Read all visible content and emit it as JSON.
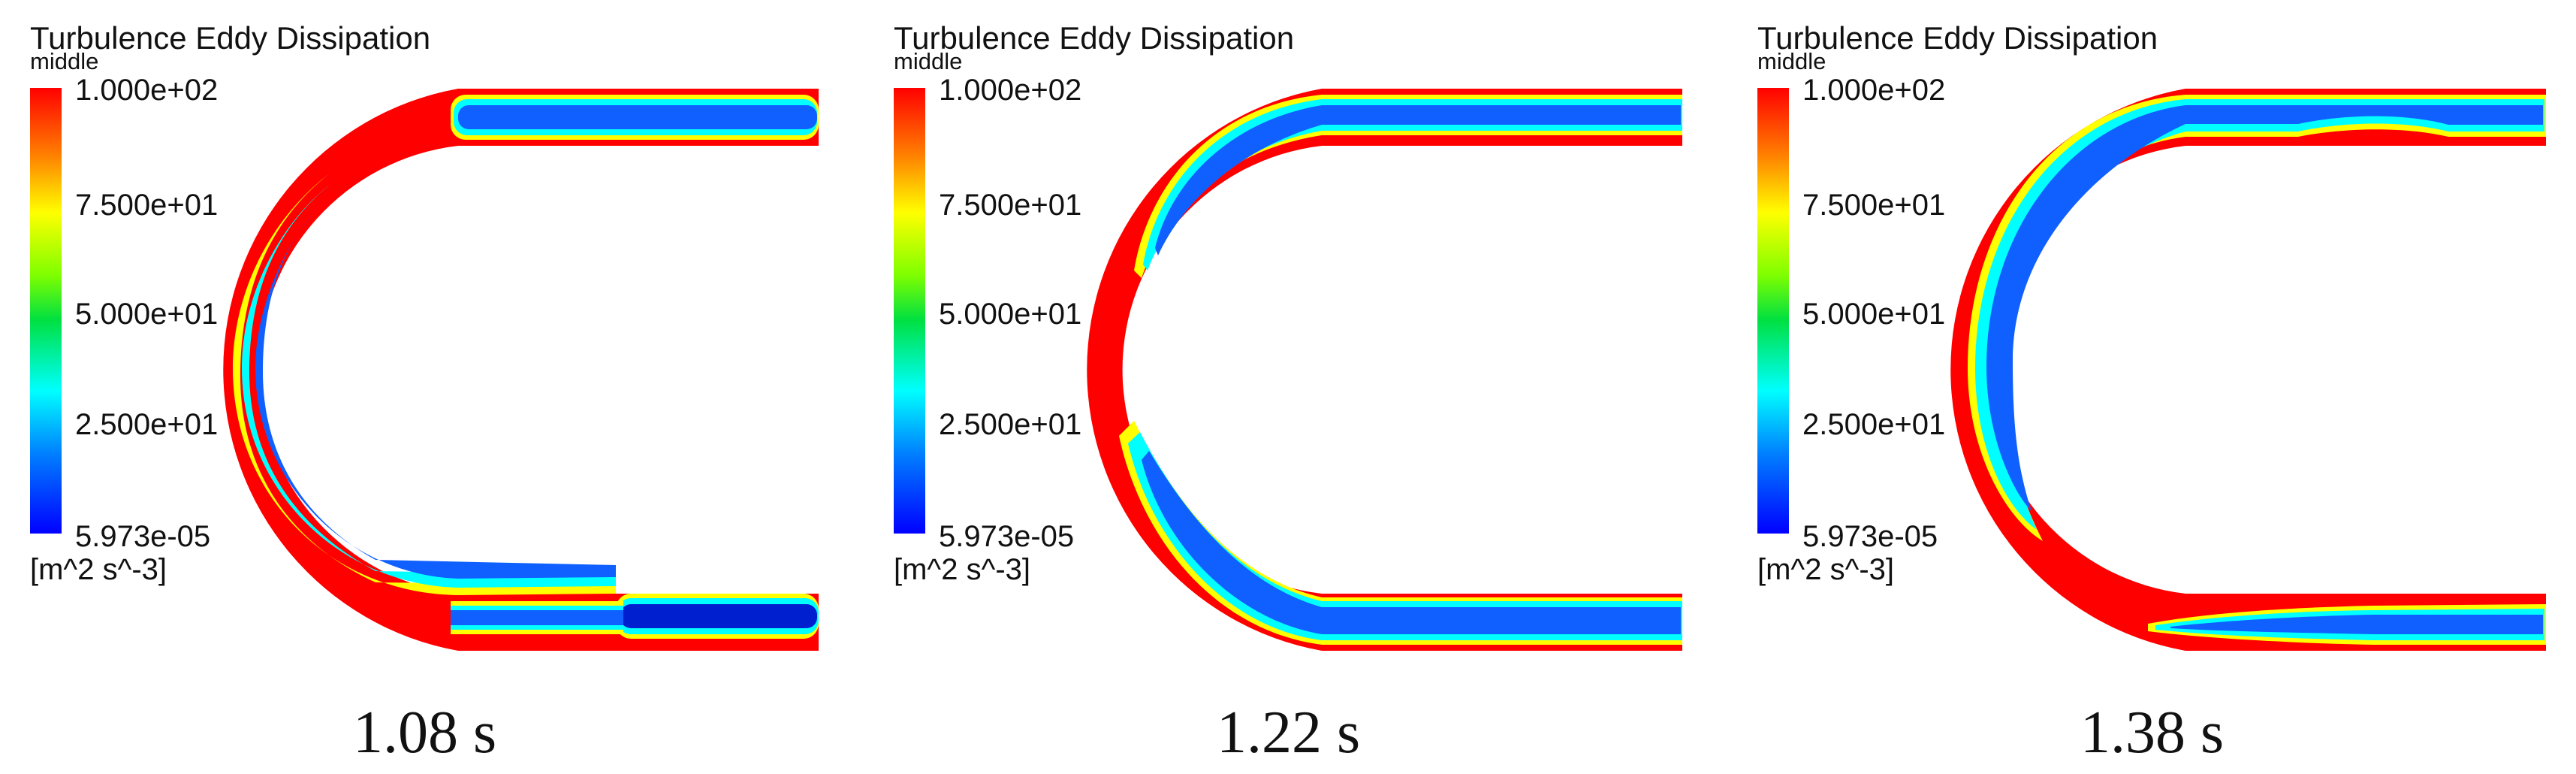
{
  "panels": [
    {
      "legend": {
        "title": "Turbulence Eddy Dissipation",
        "location": "middle",
        "ticks": [
          "1.000e+02",
          "7.500e+01",
          "5.000e+01",
          "2.500e+01",
          "5.973e-05"
        ],
        "units": "[m^2 s^-3]"
      },
      "caption": "1.08 s"
    },
    {
      "legend": {
        "title": "Turbulence Eddy Dissipation",
        "location": "middle",
        "ticks": [
          "1.000e+02",
          "7.500e+01",
          "5.000e+01",
          "2.500e+01",
          "5.973e-05"
        ],
        "units": "[m^2 s^-3]"
      },
      "caption": "1.22 s"
    },
    {
      "legend": {
        "title": "Turbulence Eddy Dissipation",
        "location": "middle",
        "ticks": [
          "1.000e+02",
          "7.500e+01",
          "5.000e+01",
          "2.500e+01",
          "5.973e-05"
        ],
        "units": "[m^2 s^-3]"
      },
      "caption": "1.38 s"
    }
  ],
  "colors": {
    "high": "#ff0000",
    "mid_high": "#ffff00",
    "mid": "#00ff40",
    "mid_low": "#00ffff",
    "low": "#0000ff"
  }
}
